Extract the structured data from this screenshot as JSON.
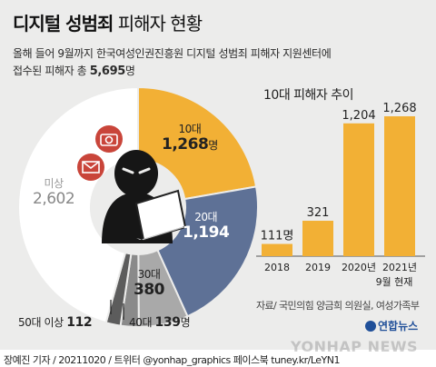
{
  "header": {
    "title_bold": "디지털 성범죄",
    "title_rest": "피해자 현황",
    "subtitle_line1": "올해 들어 9월까지 한국여성인권진흥원 디지털 성범죄 피해자 지원센터에",
    "subtitle_line2_prefix": "접수된 피해자 총",
    "subtitle_total": "5,695",
    "subtitle_unit": "명"
  },
  "chart_data": [
    {
      "type": "pie",
      "title": "",
      "total": 5695,
      "slices": [
        {
          "name": "10대",
          "value": 1268,
          "value_label": "1,268",
          "unit": "명",
          "color": "#f2b035"
        },
        {
          "name": "20대",
          "value": 1194,
          "value_label": "1,194",
          "unit": "",
          "color": "#5e7196"
        },
        {
          "name": "30대",
          "value": 380,
          "value_label": "380",
          "unit": "",
          "color": "#a9a9a9"
        },
        {
          "name": "40대",
          "value": 139,
          "value_label": "139",
          "unit": "명",
          "color": "#8a8a8a"
        },
        {
          "name": "50대 이상",
          "value": 112,
          "value_label": "112",
          "unit": "",
          "color": "#5c5c5c"
        },
        {
          "name": "미상",
          "value": 2602,
          "value_label": "2,602",
          "unit": "",
          "color": "#ffffff"
        }
      ]
    },
    {
      "type": "bar",
      "title": "10대 피해자 추이",
      "categories": [
        "2018",
        "2019",
        "2020년",
        "2021년"
      ],
      "category_notes": [
        "",
        "",
        "",
        "9월 현재"
      ],
      "values": [
        111,
        321,
        1204,
        1268
      ],
      "value_labels": [
        "111명",
        "321",
        "1,204",
        "1,268"
      ],
      "bar_color": "#f2b035",
      "ylim": [
        0,
        1400
      ]
    }
  ],
  "source_note": "자료/ 국민의힘 양금희 의원실, 여성가족부",
  "logo_text": "연합뉴스",
  "footer_credit": "장예진 기자 / 20211020 / 트위터 @yonhap_graphics  페이스북 tuney.kr/LeYN1",
  "watermark": "YONHAP NEWS"
}
